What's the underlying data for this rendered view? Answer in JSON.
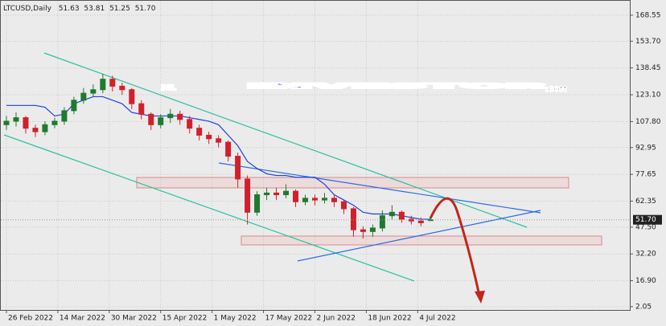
{
  "chart_data": {
    "type": "candlestick",
    "header": "LTCUSD,Daily",
    "watermark": [
      "BEL",
      "INVESTOR",
      ".COM"
    ],
    "x": [
      "2022-02-26",
      "2022-03-01",
      "2022-03-04",
      "2022-03-07",
      "2022-03-10",
      "2022-03-13",
      "2022-03-16",
      "2022-03-19",
      "2022-03-22",
      "2022-03-25",
      "2022-03-28",
      "2022-03-31",
      "2022-04-03",
      "2022-04-06",
      "2022-04-09",
      "2022-04-12",
      "2022-04-15",
      "2022-04-18",
      "2022-04-21",
      "2022-04-24",
      "2022-04-27",
      "2022-04-30",
      "2022-05-03",
      "2022-05-06",
      "2022-05-09",
      "2022-05-12",
      "2022-05-15",
      "2022-05-18",
      "2022-05-21",
      "2022-05-24",
      "2022-05-27",
      "2022-05-30",
      "2022-06-02",
      "2022-06-05",
      "2022-06-08",
      "2022-06-11",
      "2022-06-14",
      "2022-06-17",
      "2022-06-20",
      "2022-06-23",
      "2022-06-26",
      "2022-06-29",
      "2022-07-02",
      "2022-07-05",
      "2022-07-08"
    ],
    "open": [
      106,
      108,
      110,
      104,
      102,
      106,
      108,
      114,
      120,
      124,
      126,
      132,
      128,
      126,
      118,
      112,
      106,
      110,
      112,
      109,
      104,
      100,
      98,
      96,
      88,
      75,
      56,
      66,
      67,
      66,
      68,
      62,
      64,
      63,
      64,
      62,
      58,
      46,
      45,
      47,
      54,
      56,
      52,
      51,
      51.63
    ],
    "high": [
      111,
      113,
      111,
      106,
      108,
      110,
      116,
      122,
      127,
      129,
      135,
      134,
      130,
      127,
      120,
      113,
      112,
      115,
      114,
      111,
      106,
      102,
      100,
      97,
      90,
      77,
      68,
      70,
      70,
      72,
      69,
      66,
      66,
      67,
      66,
      63,
      59,
      48,
      49,
      57,
      60,
      57,
      54,
      53,
      53.81
    ],
    "low": [
      103,
      105,
      101,
      99,
      100,
      104,
      106,
      112,
      118,
      122,
      124,
      125,
      123,
      115,
      109,
      103,
      104,
      107,
      106,
      101,
      97,
      95,
      93,
      85,
      70,
      49,
      54,
      63,
      63,
      64,
      59,
      60,
      60,
      61,
      59,
      55,
      42,
      41,
      42,
      45,
      52,
      50,
      49,
      48,
      51.25
    ],
    "close": [
      108,
      110,
      104,
      102,
      106,
      108,
      114,
      120,
      124,
      126,
      132,
      128,
      126,
      118,
      112,
      106,
      110,
      112,
      109,
      104,
      100,
      98,
      96,
      88,
      75,
      56,
      66,
      67,
      66,
      68,
      62,
      64,
      63,
      64,
      62,
      58,
      46,
      45,
      47,
      54,
      56,
      52,
      51,
      50,
      51.7
    ],
    "colors": {
      "up": "#1f7a2e",
      "down": "#d0202a"
    },
    "lines": [
      {
        "color": "#1f3fe0",
        "values": [
          117,
          117,
          117,
          117,
          116,
          111,
          112,
          118,
          120,
          122,
          122,
          120,
          118,
          113,
          112,
          111,
          111,
          111,
          111,
          110,
          109,
          108,
          106,
          100,
          94,
          85,
          81,
          78,
          77,
          77,
          76,
          76,
          76,
          72,
          66,
          63,
          60,
          56,
          55,
          55,
          55,
          54,
          53,
          52,
          52
        ]
      }
    ],
    "price_label": {
      "value": 51.7,
      "label": "51.70"
    },
    "ylim": [
      0.2,
      175.4
    ],
    "yticks": [
      2.05,
      {
        "value": 16.9,
        "label": "16.90"
      },
      {
        "value": 32.2,
        "label": "32.20"
      },
      {
        "value": 47.5,
        "label": "47.50"
      },
      62.35,
      77.65,
      92.95,
      {
        "value": 107.8,
        "label": "107.80"
      },
      {
        "value": 123.1,
        "label": "123.10"
      },
      138.45,
      {
        "value": 153.7,
        "label": "153.70"
      },
      168.55
    ],
    "xlim": [
      "2022-02-25",
      "2022-09-08"
    ],
    "xticks": [
      {
        "value": "2022-02-26",
        "label": "26 Feb 2022"
      },
      {
        "value": "2022-03-14",
        "label": "14 Mar 2022"
      },
      {
        "value": "2022-03-30",
        "label": "30 Mar 2022"
      },
      {
        "value": "2022-04-15",
        "label": "15 Apr 2022"
      },
      {
        "value": "2022-05-01",
        "label": "1 May 2022"
      },
      {
        "value": "2022-05-17",
        "label": "17 May 2022"
      },
      {
        "value": "2022-06-02",
        "label": "2 Jun 2022"
      },
      {
        "value": "2022-06-18",
        "label": "18 Jun 2022"
      },
      {
        "value": "2022-07-04",
        "label": "4 Jul 2022"
      }
    ],
    "grid": true
  }
}
